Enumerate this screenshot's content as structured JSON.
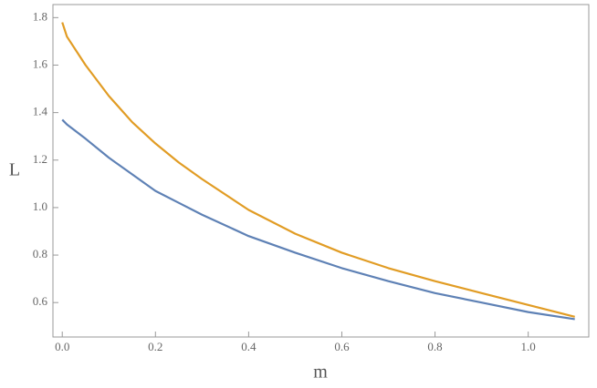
{
  "chart_data": {
    "type": "line",
    "x_label": "m",
    "y_label": "L",
    "x": [
      0,
      0.01,
      0.05,
      0.1,
      0.15,
      0.2,
      0.25,
      0.3,
      0.4,
      0.5,
      0.6,
      0.7,
      0.8,
      0.9,
      1.0,
      1.1
    ],
    "series": [
      {
        "color": "#5e81b5",
        "values": [
          1.37,
          1.35,
          1.29,
          1.21,
          1.14,
          1.07,
          1.02,
          0.97,
          0.88,
          0.81,
          0.745,
          0.69,
          0.64,
          0.6,
          0.56,
          0.53
        ]
      },
      {
        "color": "#e19c24",
        "values": [
          1.78,
          1.72,
          1.6,
          1.47,
          1.36,
          1.27,
          1.19,
          1.12,
          0.99,
          0.89,
          0.81,
          0.745,
          0.69,
          0.64,
          0.59,
          0.54
        ]
      }
    ],
    "xlim": [
      -0.02,
      1.13
    ],
    "ylim": [
      0.455,
      1.855
    ],
    "xticks": [
      {
        "value": 0,
        "label": "0.0"
      },
      0.2,
      0.4,
      0.6,
      0.8,
      {
        "value": 1,
        "label": "1.0"
      }
    ],
    "yticks": [
      0.6,
      0.8,
      {
        "value": 1,
        "label": "1.0"
      },
      1.2,
      1.4,
      1.6,
      1.8
    ]
  }
}
